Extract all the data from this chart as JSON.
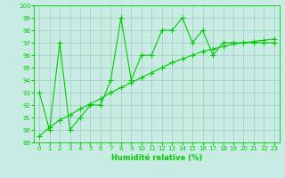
{
  "x": [
    0,
    1,
    2,
    3,
    4,
    5,
    6,
    7,
    8,
    9,
    10,
    11,
    12,
    13,
    14,
    15,
    16,
    17,
    18,
    19,
    20,
    21,
    22,
    23
  ],
  "line1": [
    93,
    90,
    97,
    90,
    91,
    92,
    92,
    94,
    99,
    94,
    96,
    96,
    98,
    98,
    99,
    97,
    98,
    96,
    97,
    97,
    97,
    97,
    97,
    97
  ],
  "line2": [
    89.5,
    90.2,
    90.8,
    91.2,
    91.7,
    92.1,
    92.5,
    93.0,
    93.4,
    93.8,
    94.2,
    94.6,
    95.0,
    95.4,
    95.7,
    96.0,
    96.3,
    96.5,
    96.7,
    96.9,
    97.0,
    97.1,
    97.2,
    97.3
  ],
  "xlabel": "Humidité relative (%)",
  "xlim": [
    -0.5,
    23.5
  ],
  "ylim": [
    89,
    100
  ],
  "yticks": [
    89,
    90,
    91,
    92,
    93,
    94,
    95,
    96,
    97,
    98,
    99,
    100
  ],
  "xticks": [
    0,
    1,
    2,
    3,
    4,
    5,
    6,
    7,
    8,
    9,
    10,
    11,
    12,
    13,
    14,
    15,
    16,
    17,
    18,
    19,
    20,
    21,
    22,
    23
  ],
  "line_color": "#00cc00",
  "bg_color": "#c8ece4",
  "grid_color": "#9ecfbf",
  "markersize": 2.5,
  "linewidth": 0.8,
  "tick_fontsize": 5.0,
  "xlabel_fontsize": 6.0
}
